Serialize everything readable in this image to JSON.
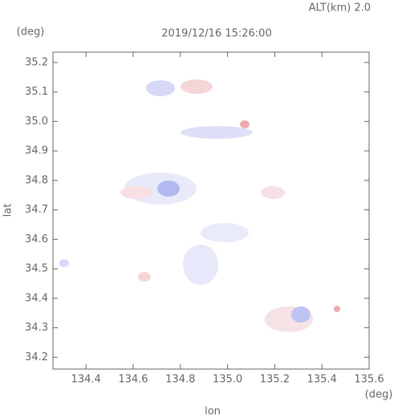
{
  "chart_data": {
    "type": "map",
    "title": "2019/12/16 15:26:00",
    "annotation": "ALT(km) 2.0",
    "x_label": "lon",
    "y_label": "lat",
    "x_unit": "(deg)",
    "y_unit": "(deg)",
    "xlim": [
      134.26,
      135.6
    ],
    "ylim": [
      34.16,
      35.235
    ],
    "xticks": [
      134.4,
      134.6,
      134.8,
      {
        "value": 135,
        "label": "135.0"
      },
      135.2,
      135.4,
      135.6
    ],
    "yticks": [
      34.2,
      34.3,
      34.4,
      34.5,
      34.6,
      34.7,
      34.8,
      34.9,
      {
        "value": 35,
        "label": "35.0"
      },
      35.1,
      35.2
    ]
  }
}
